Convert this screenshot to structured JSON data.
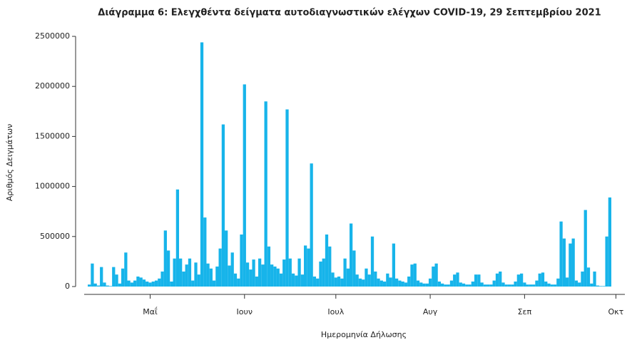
{
  "chart_data": {
    "type": "bar",
    "title": "Διάγραμμα 6: Ελεγχθέντα δείγματα αυτοδιαγνωστικών ελέγχων COVID-19, 29 Σεπτεμβρίου 2021",
    "x_label": "Ημερομηνία Δήλωσης",
    "y_label": "Αριθμός Δειγμάτων",
    "color": "#17b4ea",
    "categories": [
      null,
      null,
      null,
      null,
      null,
      null,
      null,
      null,
      null,
      null,
      null,
      null,
      null,
      null,
      null,
      null,
      null,
      null,
      null,
      null,
      null,
      null,
      null,
      null,
      null,
      null,
      null,
      null,
      null,
      null,
      null,
      null,
      null,
      null,
      null,
      null,
      null,
      null,
      null,
      null,
      null,
      null,
      null,
      null,
      null,
      null,
      null,
      null,
      null,
      null,
      null,
      null,
      null,
      null,
      null,
      null,
      null,
      null,
      null,
      null,
      null,
      null,
      null,
      null,
      null,
      null,
      null,
      null,
      null,
      null,
      null,
      null,
      null,
      null,
      null,
      null,
      null,
      null,
      null,
      null,
      null,
      null,
      null,
      null,
      null,
      null,
      null,
      null,
      null,
      null,
      null,
      null,
      null,
      null,
      null,
      null,
      null,
      null,
      null,
      null,
      null,
      null,
      null,
      null,
      null,
      null,
      null,
      null,
      null,
      null,
      null,
      null,
      null,
      null,
      null,
      null,
      null,
      null,
      null,
      null,
      null,
      null,
      null,
      null,
      null,
      null,
      null,
      null,
      null,
      null,
      null,
      null,
      null,
      null,
      null,
      null,
      null,
      null,
      null,
      null,
      null,
      null,
      null,
      null,
      null,
      null,
      null,
      null,
      null,
      null,
      null,
      null,
      null,
      null,
      null,
      null,
      null,
      null,
      null,
      null,
      null,
      null,
      null,
      null,
      null,
      null,
      null,
      null,
      null,
      null,
      null,
      null
    ],
    "values": [
      20000,
      230000,
      30000,
      10000,
      195000,
      40000,
      10000,
      5000,
      195000,
      120000,
      30000,
      180000,
      340000,
      60000,
      40000,
      60000,
      100000,
      90000,
      70000,
      50000,
      40000,
      50000,
      60000,
      80000,
      150000,
      560000,
      360000,
      50000,
      280000,
      970000,
      280000,
      150000,
      220000,
      280000,
      60000,
      240000,
      120000,
      2440000,
      690000,
      230000,
      180000,
      60000,
      200000,
      380000,
      1620000,
      560000,
      210000,
      340000,
      130000,
      80000,
      520000,
      2020000,
      240000,
      170000,
      270000,
      100000,
      280000,
      220000,
      1850000,
      400000,
      220000,
      200000,
      180000,
      130000,
      270000,
      1770000,
      280000,
      130000,
      110000,
      280000,
      120000,
      410000,
      380000,
      1230000,
      100000,
      80000,
      250000,
      280000,
      520000,
      400000,
      140000,
      90000,
      100000,
      80000,
      280000,
      180000,
      630000,
      360000,
      120000,
      80000,
      70000,
      180000,
      120000,
      500000,
      150000,
      80000,
      60000,
      50000,
      130000,
      90000,
      430000,
      80000,
      60000,
      50000,
      40000,
      100000,
      220000,
      230000,
      60000,
      40000,
      30000,
      30000,
      80000,
      200000,
      230000,
      50000,
      30000,
      20000,
      20000,
      60000,
      120000,
      140000,
      40000,
      30000,
      20000,
      20000,
      50000,
      120000,
      120000,
      40000,
      20000,
      20000,
      20000,
      60000,
      130000,
      150000,
      40000,
      20000,
      20000,
      20000,
      50000,
      120000,
      130000,
      40000,
      20000,
      20000,
      20000,
      60000,
      130000,
      140000,
      50000,
      30000,
      20000,
      20000,
      80000,
      650000,
      480000,
      90000,
      430000,
      480000,
      60000,
      40000,
      150000,
      765000,
      190000,
      30000,
      150000,
      10000,
      5000,
      5000,
      500000,
      890000
    ],
    "xticks": [
      {
        "value": 20,
        "label": "Μαΐ"
      },
      {
        "value": 51,
        "label": "Ιουν"
      },
      {
        "value": 81,
        "label": "Ιουλ"
      },
      {
        "value": 112,
        "label": "Αυγ"
      },
      {
        "value": 143,
        "label": "Σεπ"
      },
      {
        "value": 173,
        "label": "Οκτ"
      }
    ],
    "ylim": [
      0,
      2500000
    ],
    "yticks": [
      0,
      500000,
      1000000,
      1500000,
      2000000,
      2500000
    ],
    "grid": false
  }
}
